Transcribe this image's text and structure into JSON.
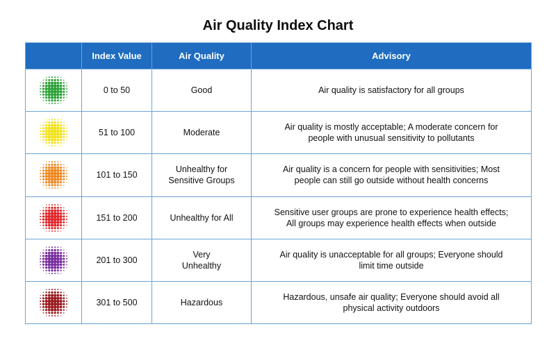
{
  "title": "Air Quality Index Chart",
  "headers": [
    "",
    "Index Value",
    "Air Quality",
    "Advisory"
  ],
  "rows": [
    {
      "icon": "green-dotted-circle-icon",
      "color": "#2fa33a",
      "index": "0 to 50",
      "quality": "Good",
      "advisory": "Air quality is satisfactory for all groups"
    },
    {
      "icon": "yellow-dotted-circle-icon",
      "color": "#f2e21b",
      "index": "51 to 100",
      "quality": "Moderate",
      "advisory": "Air quality is mostly acceptable; A moderate concern for\npeople with unusual sensitivity to pollutants"
    },
    {
      "icon": "orange-dotted-circle-icon",
      "color": "#f08a24",
      "index": "101 to 150",
      "quality": "Unhealthy for\nSensitive Groups",
      "advisory": "Air quality is a concern for people with sensitivities; Most\npeople can still go outside without health concerns"
    },
    {
      "icon": "red-dotted-circle-icon",
      "color": "#e2262b",
      "index": "151 to 200",
      "quality": "Unhealthy for All",
      "advisory": "Sensitive user groups are prone to experience health effects;\nAll groups may experience health effects when outside"
    },
    {
      "icon": "purple-dotted-circle-icon",
      "color": "#7b2fa0",
      "index": "201 to 300",
      "quality": "Very\nUnhealthy",
      "advisory": "Air quality is unacceptable for all groups; Everyone should\nlimit time outside"
    },
    {
      "icon": "maroon-dotted-circle-icon",
      "color": "#9b1c20",
      "index": "301 to 500",
      "quality": "Hazardous",
      "advisory": "Hazardous, unsafe air quality; Everyone should avoid all\nphysical activity outdoors"
    }
  ]
}
